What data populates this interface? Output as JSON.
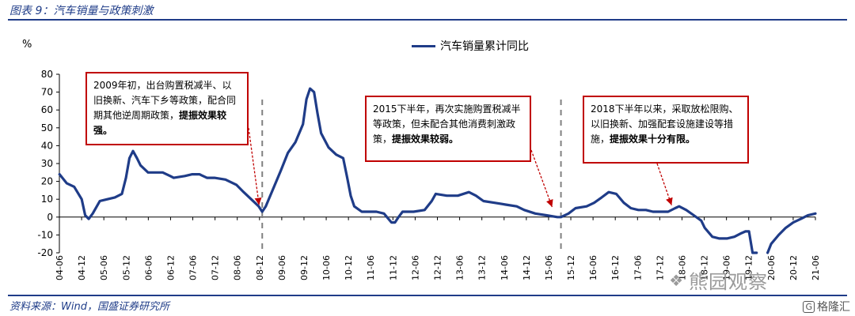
{
  "header": {
    "title": "图表 9：汽车销量与政策刺激"
  },
  "footer": {
    "source": "资料来源：Wind，国盛证券研究所"
  },
  "watermark": {
    "text": "熊园观察",
    "logo_text": "格隆汇",
    "logo_mark": "G"
  },
  "colors": {
    "series": "#1f3c88",
    "annotation_border": "#c00000",
    "divider": "#808080",
    "brand": "#1f3c88"
  },
  "annotations": [
    {
      "pre": "2009年初，出台购置税减半、以旧换新、汽车下乡等政策，配合同期其他逆周期政策，",
      "bold": "提振效果较强。"
    },
    {
      "pre": "2015下半年，再次实施购置税减半等政策，但未配合其他消费刺激政策，",
      "bold": "提振效果较弱。"
    },
    {
      "pre": "2018下半年以来，采取放松限购、以旧换新、加强配套设施建设等措施，",
      "bold": "提振效果十分有限。"
    }
  ],
  "chart_data": {
    "type": "line",
    "ylabel": "%",
    "ylim": [
      -20,
      80
    ],
    "yticks": [
      -20,
      -10,
      0,
      10,
      20,
      30,
      40,
      50,
      60,
      70,
      80
    ],
    "grid": false,
    "legend_position": "top-center",
    "xlim": [
      2004.416,
      2021.5
    ],
    "xticks": [
      "04-06",
      "04-12",
      "05-06",
      "05-12",
      "06-06",
      "06-12",
      "07-06",
      "07-12",
      "08-06",
      "08-12",
      "09-06",
      "09-12",
      "10-06",
      "10-12",
      "11-06",
      "11-12",
      "12-06",
      "12-12",
      "13-06",
      "13-12",
      "14-06",
      "14-12",
      "15-06",
      "15-12",
      "16-06",
      "16-12",
      "17-06",
      "17-12",
      "18-06",
      "18-12",
      "19-06",
      "19-12",
      "20-06",
      "20-12",
      "21-06"
    ],
    "vlines": [
      2009.0,
      2015.75
    ],
    "series": [
      {
        "name": "汽车销量累计同比",
        "points": [
          [
            2004.42,
            24
          ],
          [
            2004.58,
            19
          ],
          [
            2004.75,
            17
          ],
          [
            2004.92,
            10
          ],
          [
            2005.0,
            1
          ],
          [
            2005.08,
            -1
          ],
          [
            2005.17,
            2
          ],
          [
            2005.33,
            9
          ],
          [
            2005.5,
            10
          ],
          [
            2005.67,
            11
          ],
          [
            2005.83,
            13
          ],
          [
            2005.92,
            22
          ],
          [
            2006.0,
            33
          ],
          [
            2006.08,
            37
          ],
          [
            2006.17,
            33
          ],
          [
            2006.25,
            29
          ],
          [
            2006.42,
            25
          ],
          [
            2006.58,
            25
          ],
          [
            2006.75,
            25
          ],
          [
            2006.92,
            23
          ],
          [
            2007.0,
            22
          ],
          [
            2007.25,
            23
          ],
          [
            2007.42,
            24
          ],
          [
            2007.58,
            24
          ],
          [
            2007.75,
            22
          ],
          [
            2007.92,
            22
          ],
          [
            2008.17,
            21
          ],
          [
            2008.42,
            18
          ],
          [
            2008.58,
            14
          ],
          [
            2008.75,
            10
          ],
          [
            2008.92,
            6
          ],
          [
            2009.0,
            3
          ],
          [
            2009.08,
            6
          ],
          [
            2009.25,
            16
          ],
          [
            2009.42,
            26
          ],
          [
            2009.58,
            36
          ],
          [
            2009.75,
            42
          ],
          [
            2009.92,
            52
          ],
          [
            2010.0,
            66
          ],
          [
            2010.08,
            72
          ],
          [
            2010.17,
            70
          ],
          [
            2010.25,
            58
          ],
          [
            2010.33,
            47
          ],
          [
            2010.5,
            39
          ],
          [
            2010.67,
            35
          ],
          [
            2010.83,
            33
          ],
          [
            2010.92,
            22
          ],
          [
            2011.0,
            12
          ],
          [
            2011.08,
            6
          ],
          [
            2011.25,
            3
          ],
          [
            2011.42,
            3
          ],
          [
            2011.58,
            3
          ],
          [
            2011.75,
            2
          ],
          [
            2011.92,
            -3
          ],
          [
            2012.0,
            -3
          ],
          [
            2012.08,
            0
          ],
          [
            2012.17,
            3
          ],
          [
            2012.42,
            3
          ],
          [
            2012.67,
            4
          ],
          [
            2012.83,
            9
          ],
          [
            2012.92,
            13
          ],
          [
            2013.17,
            12
          ],
          [
            2013.42,
            12
          ],
          [
            2013.67,
            14
          ],
          [
            2013.83,
            12
          ],
          [
            2014.0,
            9
          ],
          [
            2014.25,
            8
          ],
          [
            2014.5,
            7
          ],
          [
            2014.75,
            6
          ],
          [
            2014.92,
            4
          ],
          [
            2015.17,
            2
          ],
          [
            2015.42,
            1
          ],
          [
            2015.67,
            0
          ],
          [
            2015.75,
            0
          ],
          [
            2015.92,
            2
          ],
          [
            2016.08,
            5
          ],
          [
            2016.33,
            6
          ],
          [
            2016.5,
            8
          ],
          [
            2016.67,
            11
          ],
          [
            2016.83,
            14
          ],
          [
            2017.0,
            13
          ],
          [
            2017.17,
            8
          ],
          [
            2017.33,
            5
          ],
          [
            2017.5,
            4
          ],
          [
            2017.67,
            4
          ],
          [
            2017.83,
            3
          ],
          [
            2018.0,
            3
          ],
          [
            2018.17,
            3
          ],
          [
            2018.33,
            5
          ],
          [
            2018.42,
            6
          ],
          [
            2018.58,
            4
          ],
          [
            2018.75,
            1
          ],
          [
            2018.92,
            -2
          ],
          [
            2019.0,
            -6
          ],
          [
            2019.17,
            -11
          ],
          [
            2019.33,
            -12
          ],
          [
            2019.5,
            -12
          ],
          [
            2019.67,
            -11
          ],
          [
            2019.83,
            -9
          ],
          [
            2019.92,
            -8
          ],
          [
            2020.0,
            -8
          ],
          [
            2020.08,
            -20
          ],
          [
            2020.17,
            -20
          ]
        ]
      },
      {
        "name": "",
        "points": [
          [
            2020.42,
            -20
          ],
          [
            2020.5,
            -15
          ],
          [
            2020.67,
            -10
          ],
          [
            2020.83,
            -6
          ],
          [
            2021.0,
            -3
          ],
          [
            2021.17,
            -1
          ],
          [
            2021.33,
            1
          ],
          [
            2021.5,
            2
          ]
        ]
      }
    ]
  }
}
